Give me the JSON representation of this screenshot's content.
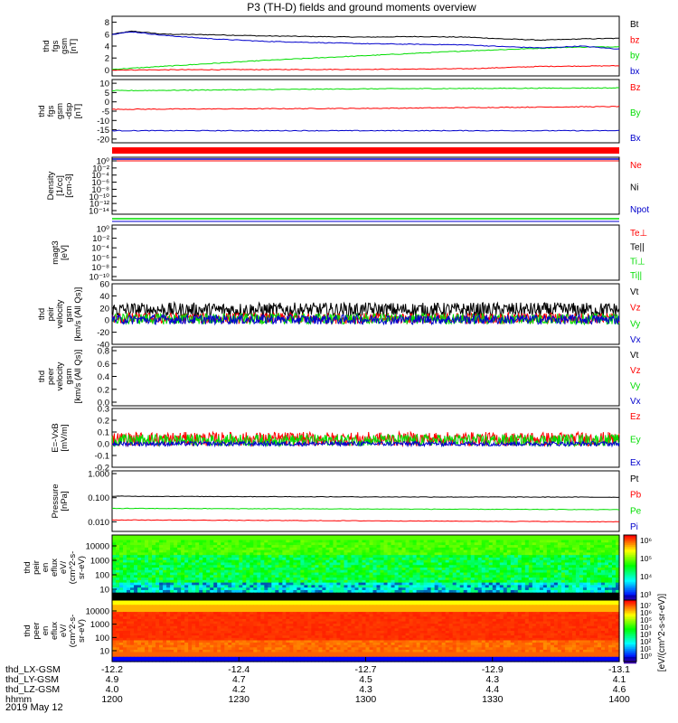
{
  "title": "P3 (TH-D) fields and ground moments overview",
  "date_label": "2019 May 12",
  "time_axis": {
    "row_labels": [
      "thd_LX-GSM",
      "thd_LY-GSM",
      "thd_LZ-GSM",
      "hhmm"
    ],
    "columns": [
      {
        "values": [
          "-12.2",
          "4.9",
          "4.0",
          "1200"
        ]
      },
      {
        "values": [
          "-12.4",
          "4.7",
          "4.2",
          "1230"
        ]
      },
      {
        "values": [
          "-12.7",
          "4.5",
          "4.3",
          "1300"
        ]
      },
      {
        "values": [
          "-12.9",
          "4.3",
          "4.4",
          "1330"
        ]
      },
      {
        "values": [
          "-13.1",
          "4.1",
          "4.6",
          "1400"
        ]
      }
    ]
  },
  "colors": {
    "black": "#000000",
    "red": "#ff0000",
    "green": "#00dd00",
    "blue": "#0000cc"
  },
  "chart_data": [
    {
      "type": "line",
      "ylabel": [
        "thd",
        "fgs",
        "gsm",
        "[nT]"
      ],
      "ylim": [
        -1,
        9
      ],
      "yticks": [
        "8",
        "6",
        "4",
        "2",
        "0"
      ],
      "ytick_values": [
        8,
        6,
        4,
        2,
        0
      ],
      "series": [
        {
          "name": "Bt",
          "color": "black",
          "x": [
            1200,
            1208,
            1220,
            1240,
            1260,
            1280,
            1300,
            1320,
            1340,
            1355,
            1370,
            1385,
            1400
          ],
          "values": [
            6.0,
            6.5,
            6.0,
            5.9,
            5.7,
            5.6,
            5.5,
            5.6,
            5.5,
            5.2,
            5.0,
            5.2,
            5.3
          ]
        },
        {
          "name": "bz",
          "color": "red",
          "x": [
            1200,
            1240,
            1300,
            1340,
            1370,
            1400
          ],
          "values": [
            0.0,
            0.05,
            0.1,
            0.2,
            0.6,
            0.7
          ]
        },
        {
          "name": "by",
          "color": "green",
          "x": [
            1200,
            1220,
            1240,
            1260,
            1280,
            1300,
            1320,
            1340,
            1360,
            1380,
            1400
          ],
          "values": [
            0.1,
            0.6,
            1.1,
            1.6,
            2.0,
            2.4,
            2.8,
            3.2,
            3.5,
            3.8,
            3.9
          ]
        },
        {
          "name": "bx",
          "color": "blue",
          "x": [
            1200,
            1208,
            1220,
            1240,
            1260,
            1280,
            1300,
            1320,
            1340,
            1355,
            1370,
            1385,
            1400
          ],
          "values": [
            6.0,
            6.4,
            5.8,
            5.2,
            4.8,
            4.6,
            4.4,
            4.3,
            4.2,
            3.9,
            3.7,
            4.0,
            3.5
          ]
        }
      ]
    },
    {
      "type": "line",
      "ylabel": [
        "thd",
        "fgs",
        "gsm",
        "-dsp",
        "[nT]"
      ],
      "ylim": [
        -22,
        12
      ],
      "yticks": [
        "10",
        "5",
        "0",
        "-5",
        "-10",
        "-15",
        "-20"
      ],
      "ytick_values": [
        10,
        5,
        0,
        -5,
        -10,
        -15,
        -20
      ],
      "series": [
        {
          "name": "Bz",
          "color": "red",
          "x": [
            1200,
            1300,
            1400
          ],
          "values": [
            -4,
            -3.5,
            -2.5
          ]
        },
        {
          "name": "By",
          "color": "green",
          "x": [
            1200,
            1300,
            1400
          ],
          "values": [
            6,
            7,
            7.5
          ]
        },
        {
          "name": "Bx",
          "color": "blue",
          "x": [
            1200,
            1300,
            1400
          ],
          "values": [
            -15.5,
            -15.5,
            -15.5
          ]
        }
      ]
    },
    {
      "type": "line",
      "ylabel": [
        "Density",
        "[1/cc]",
        "[cm-3]"
      ],
      "yticks": [
        "10⁰",
        "10⁻²",
        "10⁻⁴",
        "10⁻⁶",
        "10⁻⁸",
        "10⁻¹⁰",
        "10⁻¹²",
        "10⁻¹⁴"
      ],
      "series": [
        {
          "name": "Ne",
          "color": "red"
        },
        {
          "name": "Ni",
          "color": "black"
        },
        {
          "name": "Npot",
          "color": "blue"
        }
      ]
    },
    {
      "type": "line",
      "ylabel": [
        "magt3",
        "[eV]"
      ],
      "yticks": [
        "10⁰",
        "10⁻²",
        "10⁻⁴",
        "10⁻⁶",
        "10⁻⁸",
        "10⁻¹⁰"
      ],
      "series": [
        {
          "name": "Te⊥",
          "color": "red"
        },
        {
          "name": "Te||",
          "color": "black"
        },
        {
          "name": "Ti⊥",
          "color": "green"
        },
        {
          "name": "Ti||",
          "color": "green"
        }
      ]
    },
    {
      "type": "line",
      "ylabel": [
        "thd",
        "peir",
        "velocity",
        "gsm",
        "[km/s (All Qs)]"
      ],
      "ylim": [
        -40,
        60
      ],
      "yticks": [
        "60",
        "40",
        "20",
        "0",
        "-20",
        "-40"
      ],
      "ytick_values": [
        60,
        40,
        20,
        0,
        -20,
        -40
      ],
      "series": [
        {
          "name": "Vt",
          "color": "black",
          "mean": 17,
          "spread": 12
        },
        {
          "name": "Vz",
          "color": "red",
          "mean": 3,
          "spread": 9
        },
        {
          "name": "Vy",
          "color": "green",
          "mean": 2,
          "spread": 9
        },
        {
          "name": "Vx",
          "color": "blue",
          "mean": 1,
          "spread": 8
        }
      ]
    },
    {
      "type": "line",
      "ylabel": [
        "thd",
        "peer",
        "velocity",
        "gsm",
        "[km/s (All Qs)]"
      ],
      "yticks": [
        "0.8",
        "0.6",
        "0.4",
        "0.2",
        "0.0"
      ],
      "ytick_values": [
        0.8,
        0.6,
        0.4,
        0.2,
        0.0
      ],
      "series": [
        {
          "name": "Vt",
          "color": "black"
        },
        {
          "name": "Vz",
          "color": "red"
        },
        {
          "name": "Vy",
          "color": "green"
        },
        {
          "name": "Vx",
          "color": "blue"
        }
      ]
    },
    {
      "type": "line",
      "ylabel": [
        "E=-VxB",
        "[mV/m]"
      ],
      "ylim": [
        -0.2,
        0.3
      ],
      "yticks": [
        "0.3",
        "0.2",
        "0.1",
        "0.0",
        "-0.1",
        "-0.2"
      ],
      "ytick_values": [
        0.3,
        0.2,
        0.1,
        0.0,
        -0.1,
        -0.2
      ],
      "series": [
        {
          "name": "Ez",
          "color": "red",
          "mean": 0.04,
          "spread": 0.06
        },
        {
          "name": "Ey",
          "color": "green",
          "mean": 0.03,
          "spread": 0.05
        },
        {
          "name": "Ex",
          "color": "blue",
          "mean": 0.0,
          "spread": 0.02
        }
      ]
    },
    {
      "type": "line",
      "ylabel": [
        "Pressure",
        "[nPa]"
      ],
      "scale": "log",
      "yticks": [
        "1.000",
        "0.100",
        "0.010"
      ],
      "ytick_values": [
        1.0,
        0.1,
        0.01
      ],
      "series": [
        {
          "name": "Pt",
          "color": "black",
          "x": [
            1200,
            1300,
            1400
          ],
          "values": [
            0.115,
            0.108,
            0.105
          ]
        },
        {
          "name": "Pb",
          "color": "red",
          "x": [
            1200,
            1300,
            1400
          ],
          "values": [
            0.012,
            0.011,
            0.01
          ]
        },
        {
          "name": "Pe",
          "color": "green",
          "x": [
            1200,
            1300,
            1400
          ],
          "values": [
            0.036,
            0.034,
            0.032
          ]
        },
        {
          "name": "Pi",
          "color": "blue",
          "x": [
            1200,
            1300,
            1400
          ],
          "values": [
            0.001,
            0.001,
            0.001
          ]
        }
      ]
    },
    {
      "type": "heatmap",
      "ylabel": [
        "thd",
        "peir",
        "en",
        "eflux",
        "eV/",
        "(cm^2-s-",
        "sr-eV)"
      ],
      "yticks": [
        "10000",
        "1000",
        "100",
        "10"
      ],
      "colorbar_label": "eV/(cm^2-s-sr-eV)",
      "colorbar_ticks": [
        "10⁶",
        "10⁵",
        "10⁴",
        "10³"
      ]
    },
    {
      "type": "heatmap",
      "ylabel": [
        "thd",
        "peer",
        "en",
        "eflux",
        "eV/",
        "(cm^2-s-",
        "sr-eV)"
      ],
      "yticks": [
        "10000",
        "1000",
        "100",
        "10"
      ],
      "colorbar_label": "eV/(cm^2-s-sr-eV)",
      "colorbar_ticks": [
        "10⁷",
        "10⁶",
        "10⁵",
        "10⁴",
        "10³",
        "10²",
        "10¹",
        "10⁰"
      ]
    }
  ]
}
